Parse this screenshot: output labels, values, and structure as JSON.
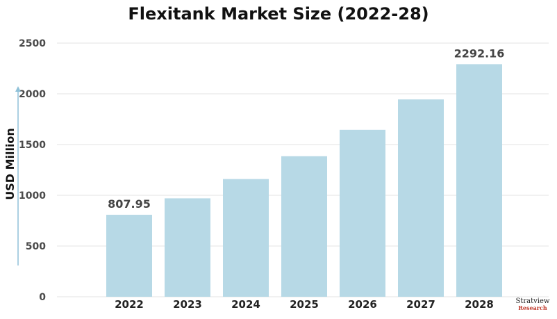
{
  "chart_data": {
    "type": "bar",
    "title": "Flexitank Market Size (2022-28)",
    "ylabel": "USD Million",
    "xlabel": "",
    "ylim": [
      0,
      2500
    ],
    "yticks": [
      0,
      500,
      1000,
      1500,
      2000,
      2500
    ],
    "grid": true,
    "categories": [
      "2022",
      "2023",
      "2024",
      "2025",
      "2026",
      "2027",
      "2028"
    ],
    "values": [
      807.95,
      970,
      1160,
      1385,
      1645,
      1945,
      2292.16
    ],
    "data_labels": [
      {
        "index": 0,
        "text": "807.95"
      },
      {
        "index": 6,
        "text": "2292.16"
      }
    ],
    "bar_color": "#b7d9e6"
  },
  "logo": {
    "name": "Stratview",
    "sub": "Research"
  }
}
